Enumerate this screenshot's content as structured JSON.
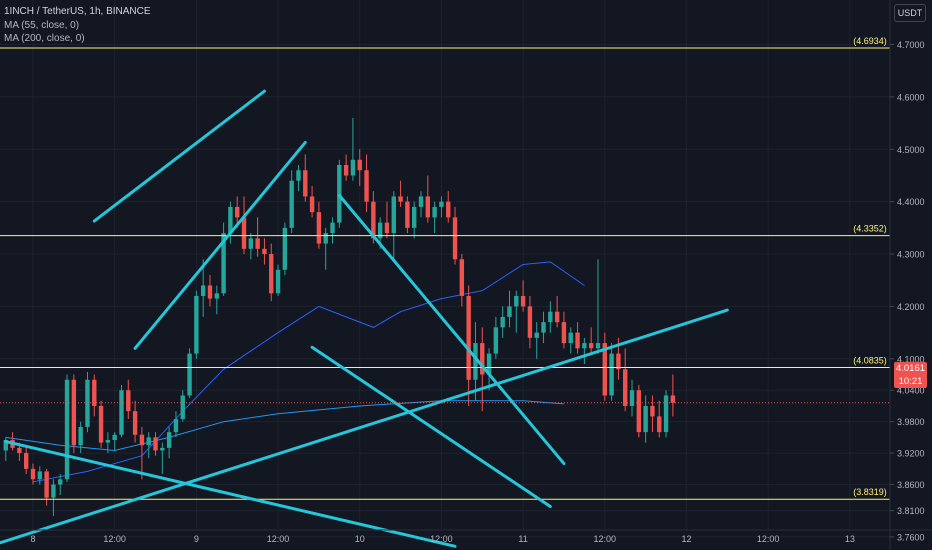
{
  "header": {
    "title": "1INCH / TetherUS, 1h, BINANCE",
    "indicators": [
      "MA (55, close, 0)",
      "MA (200, close, 0)"
    ],
    "currency_button": "USDT"
  },
  "last_price": {
    "value": "4.0161",
    "countdown": "10:21",
    "color": "#ef5350"
  },
  "colors": {
    "background": "#131722",
    "grid": "#1e222d",
    "candle_up": "#26a69a",
    "candle_down": "#ef5350",
    "trendline": "#26c6da",
    "level_line": "#fff176",
    "ma55": "#2962ff",
    "ma200": "#2196f3"
  },
  "chart_data": {
    "type": "candlestick",
    "y_axis": {
      "range": [
        3.735,
        4.785
      ],
      "ticks": [
        "4.7000",
        "4.6000",
        "4.5000",
        "4.4000",
        "4.3000",
        "4.2000",
        "4.1000",
        "4.0400",
        "3.9800",
        "3.9200",
        "3.8600",
        "3.8100",
        "3.7600"
      ]
    },
    "x_axis": {
      "ticks": [
        "8",
        "12:00",
        "9",
        "12:00",
        "10",
        "12:00",
        "11",
        "12:00",
        "12",
        "12:00",
        "13"
      ],
      "tick_hours": [
        0,
        12,
        24,
        36,
        48,
        60,
        72,
        84,
        96,
        108,
        120
      ]
    },
    "levels": [
      {
        "label": "(4.6934)",
        "value": 4.6934
      },
      {
        "label": "(4.3352)",
        "value": 4.3352
      },
      {
        "label": "(4.0835)",
        "value": 4.0835
      },
      {
        "label": "(3.8319)",
        "value": 3.8319
      }
    ],
    "candles_start_hour": -4,
    "candles": [
      [
        3.925,
        3.95,
        3.905,
        3.945
      ],
      [
        3.945,
        3.96,
        3.925,
        3.93
      ],
      [
        3.93,
        3.94,
        3.905,
        3.92
      ],
      [
        3.92,
        3.935,
        3.88,
        3.89
      ],
      [
        3.89,
        3.9,
        3.86,
        3.87
      ],
      [
        3.87,
        3.895,
        3.86,
        3.885
      ],
      [
        3.885,
        3.89,
        3.82,
        3.835
      ],
      [
        3.835,
        3.87,
        3.8,
        3.86
      ],
      [
        3.86,
        3.88,
        3.84,
        3.87
      ],
      [
        3.87,
        4.07,
        3.865,
        4.06
      ],
      [
        4.06,
        4.07,
        3.92,
        3.935
      ],
      [
        3.935,
        3.98,
        3.92,
        3.97
      ],
      [
        3.97,
        4.075,
        3.96,
        4.06
      ],
      [
        4.06,
        4.07,
        3.99,
        4.01
      ],
      [
        4.01,
        4.02,
        3.93,
        3.94
      ],
      [
        3.94,
        3.96,
        3.92,
        3.945
      ],
      [
        3.945,
        3.96,
        3.925,
        3.955
      ],
      [
        3.955,
        4.05,
        3.95,
        4.04
      ],
      [
        4.04,
        4.06,
        3.985,
        4.0
      ],
      [
        4.0,
        4.02,
        3.94,
        3.955
      ],
      [
        3.955,
        3.97,
        3.87,
        3.935
      ],
      [
        3.935,
        3.96,
        3.91,
        3.95
      ],
      [
        3.95,
        3.96,
        3.915,
        3.925
      ],
      [
        3.925,
        3.94,
        3.88,
        3.93
      ],
      [
        3.93,
        3.97,
        3.91,
        3.96
      ],
      [
        3.96,
        4.0,
        3.95,
        3.985
      ],
      [
        3.985,
        4.04,
        3.98,
        4.03
      ],
      [
        4.03,
        4.12,
        4.025,
        4.11
      ],
      [
        4.11,
        4.23,
        4.1,
        4.22
      ],
      [
        4.22,
        4.29,
        4.18,
        4.24
      ],
      [
        4.24,
        4.26,
        4.2,
        4.215
      ],
      [
        4.215,
        4.24,
        4.185,
        4.225
      ],
      [
        4.225,
        4.36,
        4.22,
        4.34
      ],
      [
        4.34,
        4.4,
        4.32,
        4.39
      ],
      [
        4.39,
        4.41,
        4.35,
        4.37
      ],
      [
        4.37,
        4.41,
        4.3,
        4.31
      ],
      [
        4.31,
        4.34,
        4.29,
        4.33
      ],
      [
        4.33,
        4.37,
        4.295,
        4.31
      ],
      [
        4.31,
        4.33,
        4.28,
        4.3
      ],
      [
        4.3,
        4.32,
        4.21,
        4.225
      ],
      [
        4.225,
        4.28,
        4.22,
        4.27
      ],
      [
        4.27,
        4.36,
        4.26,
        4.35
      ],
      [
        4.35,
        4.46,
        4.34,
        4.44
      ],
      [
        4.44,
        4.47,
        4.42,
        4.46
      ],
      [
        4.46,
        4.49,
        4.4,
        4.41
      ],
      [
        4.41,
        4.43,
        4.37,
        4.38
      ],
      [
        4.38,
        4.4,
        4.31,
        4.32
      ],
      [
        4.32,
        4.35,
        4.27,
        4.34
      ],
      [
        4.34,
        4.37,
        4.32,
        4.36
      ],
      [
        4.36,
        4.48,
        4.35,
        4.47
      ],
      [
        4.47,
        4.49,
        4.44,
        4.45
      ],
      [
        4.45,
        4.56,
        4.44,
        4.48
      ],
      [
        4.48,
        4.5,
        4.43,
        4.46
      ],
      [
        4.46,
        4.49,
        4.38,
        4.4
      ],
      [
        4.4,
        4.42,
        4.32,
        4.33
      ],
      [
        4.33,
        4.37,
        4.31,
        4.36
      ],
      [
        4.36,
        4.4,
        4.33,
        4.34
      ],
      [
        4.34,
        4.42,
        4.29,
        4.41
      ],
      [
        4.41,
        4.44,
        4.39,
        4.4
      ],
      [
        4.4,
        4.41,
        4.34,
        4.35
      ],
      [
        4.35,
        4.4,
        4.33,
        4.39
      ],
      [
        4.39,
        4.42,
        4.37,
        4.41
      ],
      [
        4.41,
        4.45,
        4.36,
        4.37
      ],
      [
        4.37,
        4.4,
        4.34,
        4.39
      ],
      [
        4.39,
        4.41,
        4.37,
        4.4
      ],
      [
        4.4,
        4.42,
        4.36,
        4.37
      ],
      [
        4.37,
        4.39,
        4.28,
        4.29
      ],
      [
        4.29,
        4.3,
        4.2,
        4.22
      ],
      [
        4.22,
        4.24,
        4.01,
        4.06
      ],
      [
        4.06,
        4.17,
        4.02,
        4.13
      ],
      [
        4.13,
        4.16,
        4.0,
        4.07
      ],
      [
        4.07,
        4.12,
        4.04,
        4.11
      ],
      [
        4.11,
        4.18,
        4.1,
        4.16
      ],
      [
        4.16,
        4.2,
        4.14,
        4.18
      ],
      [
        4.18,
        4.23,
        4.16,
        4.2
      ],
      [
        4.2,
        4.23,
        4.15,
        4.22
      ],
      [
        4.22,
        4.25,
        4.19,
        4.2
      ],
      [
        4.2,
        4.22,
        4.12,
        4.14
      ],
      [
        4.14,
        4.17,
        4.1,
        4.15
      ],
      [
        4.15,
        4.19,
        4.13,
        4.17
      ],
      [
        4.17,
        4.21,
        4.15,
        4.19
      ],
      [
        4.19,
        4.22,
        4.16,
        4.17
      ],
      [
        4.17,
        4.19,
        4.12,
        4.13
      ],
      [
        4.13,
        4.16,
        4.11,
        4.15
      ],
      [
        4.15,
        4.17,
        4.11,
        4.12
      ],
      [
        4.12,
        4.14,
        4.09,
        4.13
      ],
      [
        4.13,
        4.16,
        4.11,
        4.12
      ],
      [
        4.12,
        4.29,
        4.11,
        4.13
      ],
      [
        4.13,
        4.15,
        4.02,
        4.03
      ],
      [
        4.03,
        4.13,
        4.02,
        4.11
      ],
      [
        4.11,
        4.14,
        4.06,
        4.08
      ],
      [
        4.08,
        4.12,
        4.0,
        4.01
      ],
      [
        4.01,
        4.06,
        3.99,
        4.04
      ],
      [
        4.04,
        4.05,
        3.95,
        3.96
      ],
      [
        3.96,
        4.03,
        3.94,
        4.01
      ],
      [
        4.01,
        4.03,
        3.96,
        3.99
      ],
      [
        3.99,
        4.02,
        3.95,
        3.96
      ],
      [
        3.96,
        4.04,
        3.95,
        4.03
      ],
      [
        4.03,
        4.07,
        3.99,
        4.016
      ]
    ],
    "moving_averages": [
      {
        "name": "MA (55, close, 0)",
        "color": "#2962ff",
        "points": [
          [
            0,
            3.865
          ],
          [
            8,
            3.885
          ],
          [
            16,
            3.915
          ],
          [
            22,
            4.0
          ],
          [
            28,
            4.08
          ],
          [
            36,
            4.15
          ],
          [
            42,
            4.2
          ],
          [
            50,
            4.16
          ],
          [
            54,
            4.19
          ],
          [
            60,
            4.215
          ],
          [
            66,
            4.23
          ],
          [
            72,
            4.28
          ],
          [
            76,
            4.285
          ],
          [
            81,
            4.24
          ]
        ]
      },
      {
        "name": "MA (200, close, 0)",
        "color": "#2196f3",
        "points": [
          [
            -4,
            3.95
          ],
          [
            4,
            3.935
          ],
          [
            12,
            3.925
          ],
          [
            20,
            3.95
          ],
          [
            28,
            3.98
          ],
          [
            36,
            3.995
          ],
          [
            48,
            4.01
          ],
          [
            60,
            4.02
          ],
          [
            72,
            4.02
          ],
          [
            78,
            4.014
          ]
        ]
      }
    ],
    "trendlines": [
      {
        "from": [
          9,
          4.363
        ],
        "to": [
          34,
          4.611
        ]
      },
      {
        "from": [
          15,
          4.12
        ],
        "to": [
          40,
          4.513
        ]
      },
      {
        "from": [
          45,
          4.412
        ],
        "to": [
          78,
          3.9
        ]
      },
      {
        "from": [
          41,
          4.122
        ],
        "to": [
          76,
          3.818
        ]
      },
      {
        "from": [
          -5,
          3.748
        ],
        "to": [
          102,
          4.193
        ]
      },
      {
        "from": [
          -4,
          3.942
        ],
        "to": [
          62,
          3.742
        ]
      }
    ]
  }
}
